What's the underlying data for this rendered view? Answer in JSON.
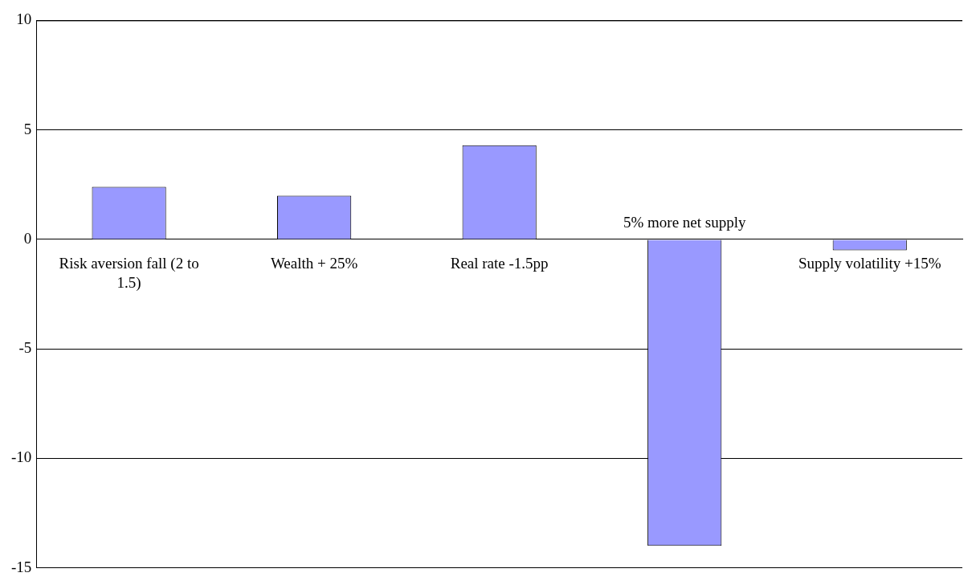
{
  "chart_data": {
    "type": "bar",
    "categories": [
      "Risk aversion fall (2 to 1.5)",
      "Wealth + 25%",
      "Real rate -1.5pp",
      "5% more net supply",
      "Supply volatility +15%"
    ],
    "values": [
      2.4,
      2.0,
      4.3,
      -14,
      -0.5
    ],
    "color": "#9999ff",
    "ylim": [
      -15,
      10
    ],
    "yticks": [
      -15,
      -10,
      -5,
      0,
      5,
      10
    ],
    "grid": "y",
    "legend": false
  }
}
